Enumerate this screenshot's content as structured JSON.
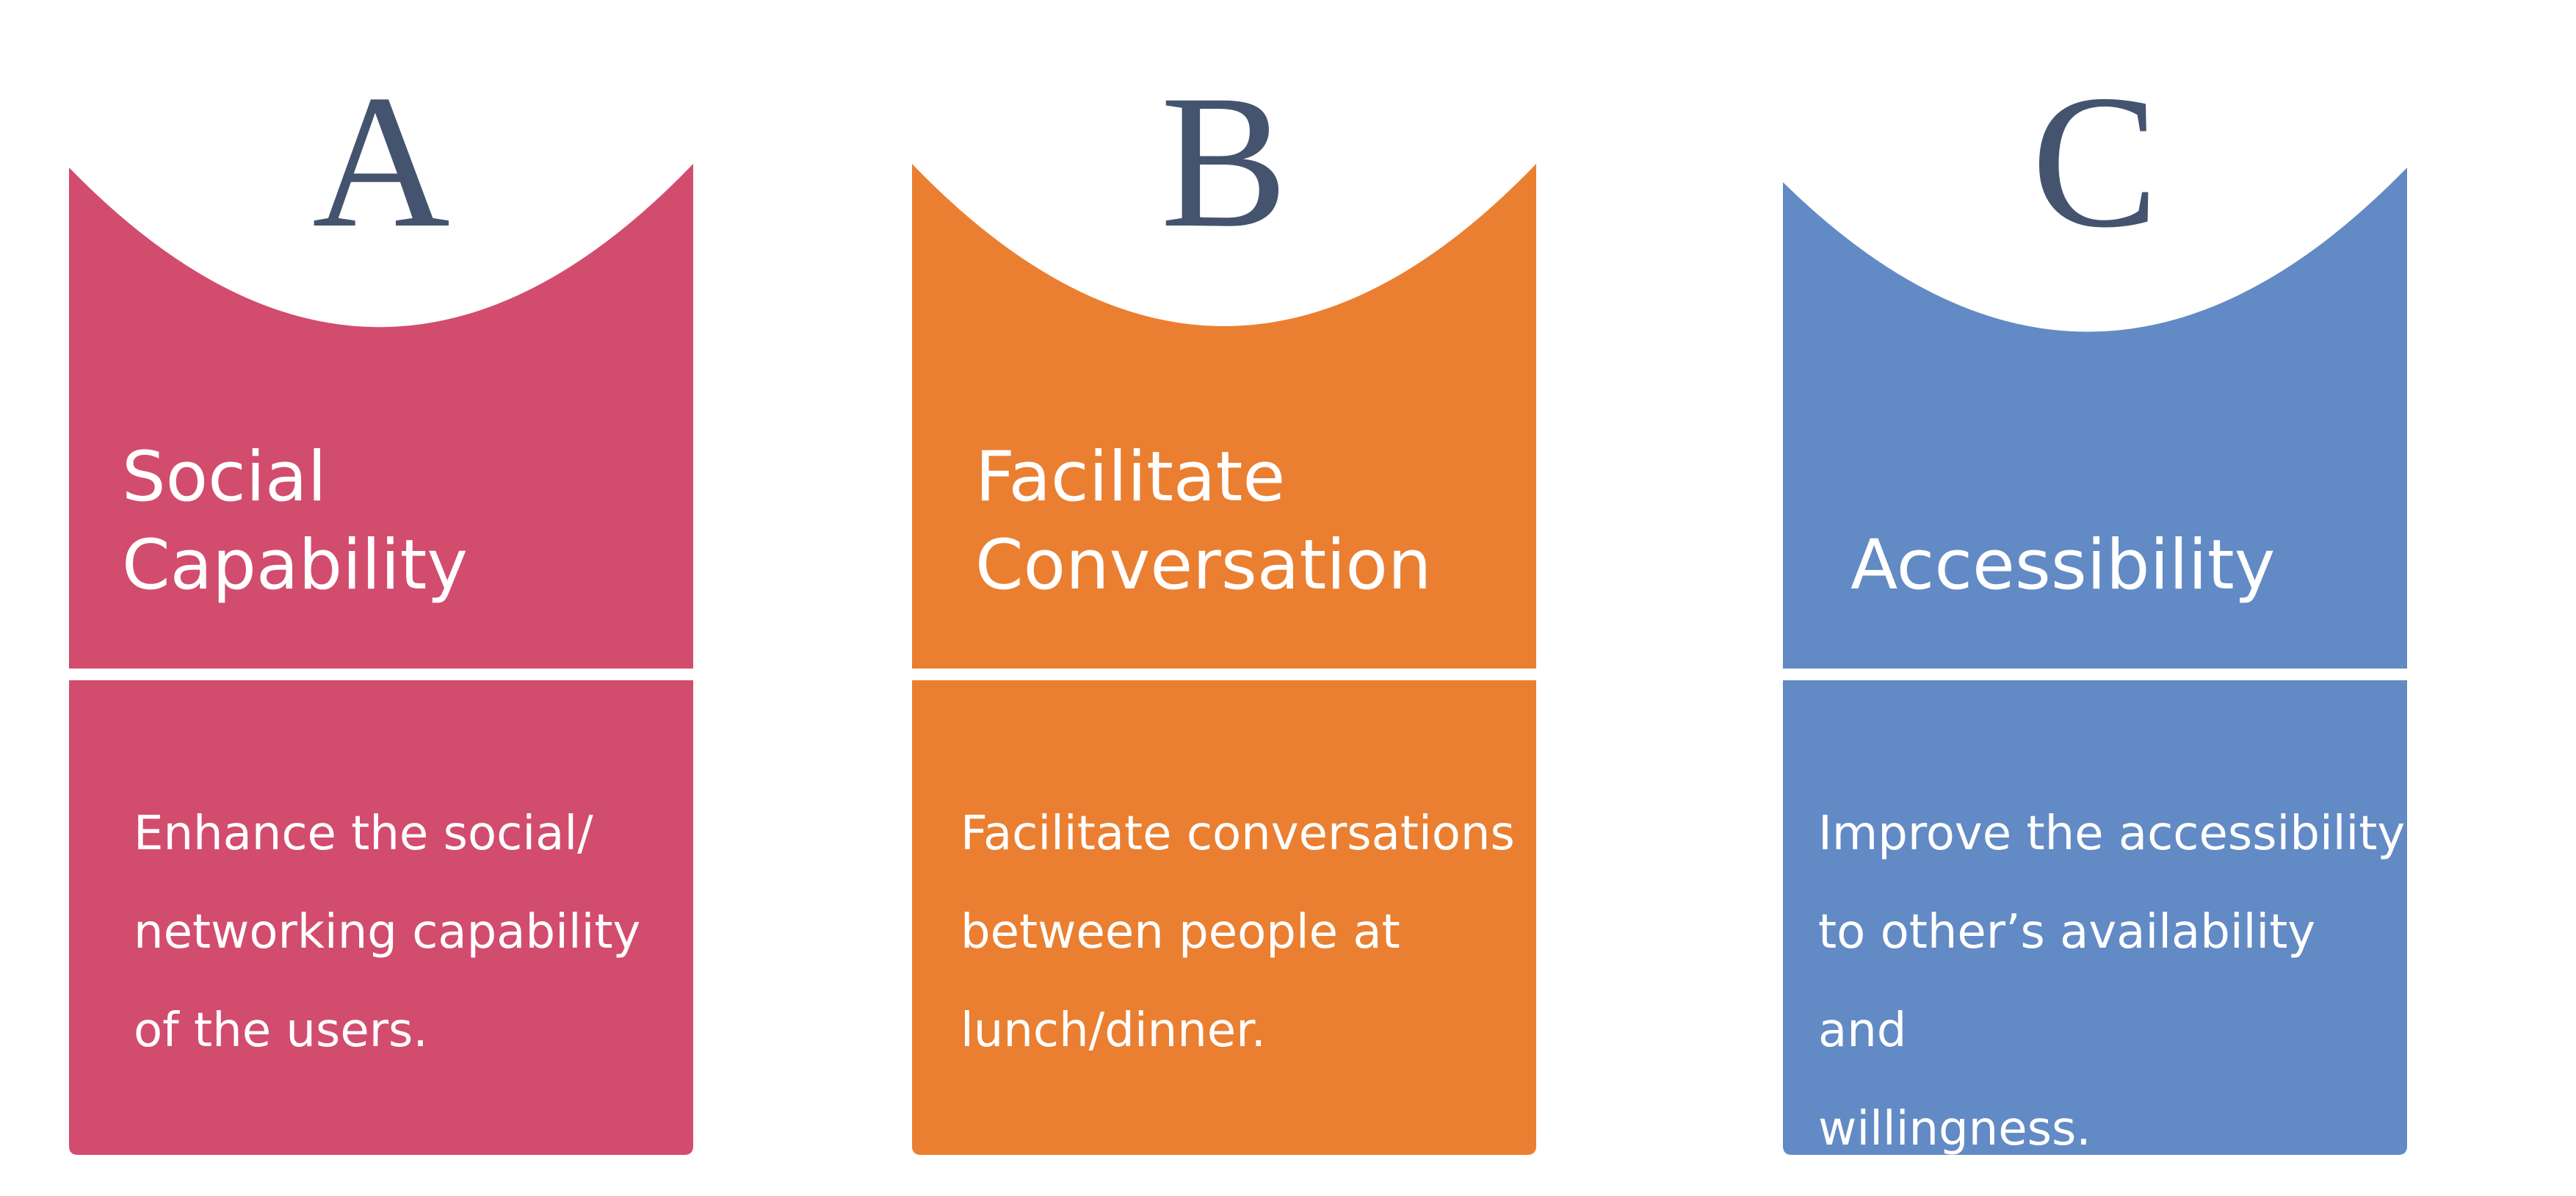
{
  "cards": [
    {
      "letter": "A",
      "title_lines": [
        "Social",
        "Capability"
      ],
      "description_lines": [
        "Enhance the social/",
        "networking capability",
        "of the users."
      ],
      "color": "#d24c6e"
    },
    {
      "letter": "B",
      "title_lines": [
        "Facilitate",
        "Conversation"
      ],
      "description_lines": [
        "Facilitate conversations",
        "between people at",
        "lunch/dinner."
      ],
      "color": "#ea7f31"
    },
    {
      "letter": "C",
      "title_lines": [
        "Accessibility"
      ],
      "description_lines": [
        "Improve the accessibility",
        "to other’s availability and",
        "willingness."
      ],
      "color": "#628ac5"
    }
  ]
}
